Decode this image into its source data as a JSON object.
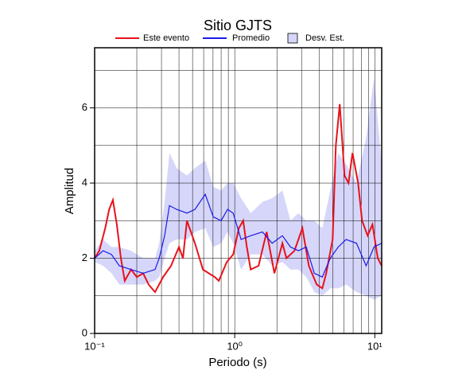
{
  "chart_data": {
    "type": "line",
    "title": "Sitio GJTS",
    "x_label": "Periodo (s)",
    "y_label": "Amplitud",
    "xscale": "log",
    "xlim": [
      0.1,
      11.2
    ],
    "ylim": [
      0,
      7.6
    ],
    "xticks": [
      {
        "value": 0.1,
        "label": "10⁻¹"
      },
      {
        "value": 1,
        "label": "10⁰"
      },
      {
        "value": 10,
        "label": "10¹"
      }
    ],
    "xminor": [
      0.2,
      0.3,
      0.4,
      0.5,
      0.6,
      0.7,
      0.8,
      0.9,
      2,
      3,
      4,
      5,
      6,
      7,
      8,
      9
    ],
    "yticks": [
      0,
      2,
      4,
      6
    ],
    "yminor": [
      1,
      3,
      5,
      7
    ],
    "grid": true,
    "legend": "top",
    "series": [
      {
        "name": "Este evento",
        "color": "#e8111a",
        "x": [
          0.1,
          0.108,
          0.119,
          0.127,
          0.135,
          0.144,
          0.154,
          0.164,
          0.182,
          0.2,
          0.222,
          0.243,
          0.27,
          0.308,
          0.351,
          0.4,
          0.427,
          0.456,
          0.52,
          0.593,
          0.721,
          0.77,
          0.877,
          0.975,
          1.07,
          1.15,
          1.22,
          1.3,
          1.48,
          1.69,
          1.92,
          2.19,
          2.34,
          2.67,
          3.04,
          3.38,
          3.85,
          4.22,
          4.5,
          5.0,
          5.27,
          5.62,
          6.08,
          6.49,
          6.93,
          7.6,
          8.11,
          8.89,
          9.62,
          10.5,
          11.2
        ],
        "values": [
          2.0,
          2.2,
          2.8,
          3.3,
          3.55,
          2.9,
          2.0,
          1.4,
          1.7,
          1.5,
          1.6,
          1.3,
          1.1,
          1.5,
          1.8,
          2.3,
          2.0,
          3.0,
          2.4,
          1.7,
          1.5,
          1.4,
          1.9,
          2.1,
          2.8,
          3.0,
          2.3,
          1.7,
          1.8,
          2.7,
          1.6,
          2.4,
          2.0,
          2.2,
          2.8,
          1.8,
          1.3,
          1.2,
          1.6,
          2.5,
          5.0,
          6.1,
          4.2,
          4.0,
          4.8,
          4.0,
          3.0,
          2.6,
          2.9,
          2.0,
          1.8
        ]
      },
      {
        "name": "Promedio",
        "color": "#1a1ae8",
        "x": [
          0.1,
          0.115,
          0.132,
          0.15,
          0.182,
          0.222,
          0.27,
          0.289,
          0.316,
          0.342,
          0.385,
          0.456,
          0.52,
          0.616,
          0.703,
          0.8,
          0.889,
          0.975,
          1.11,
          1.3,
          1.58,
          1.85,
          2.19,
          2.5,
          2.85,
          3.24,
          3.7,
          4.22,
          4.81,
          5.48,
          6.24,
          7.4,
          8.67,
          9.87,
          11.2
        ],
        "values": [
          2.0,
          2.2,
          2.1,
          1.8,
          1.7,
          1.6,
          1.7,
          2.0,
          2.6,
          3.4,
          3.3,
          3.2,
          3.3,
          3.7,
          3.1,
          3.0,
          3.3,
          3.2,
          2.5,
          2.6,
          2.7,
          2.4,
          2.6,
          2.3,
          2.2,
          2.3,
          1.6,
          1.5,
          2.0,
          2.3,
          2.5,
          2.4,
          1.8,
          2.3,
          2.4
        ]
      },
      {
        "name": "Desv. Est.",
        "color": "#d6d6fa",
        "band": true,
        "x": [
          0.1,
          0.115,
          0.132,
          0.15,
          0.182,
          0.222,
          0.27,
          0.289,
          0.316,
          0.342,
          0.385,
          0.456,
          0.52,
          0.616,
          0.703,
          0.8,
          0.889,
          0.975,
          1.11,
          1.3,
          1.58,
          1.85,
          2.19,
          2.5,
          2.85,
          3.24,
          3.7,
          4.22,
          4.81,
          5.48,
          6.24,
          7.4,
          8.67,
          9.87,
          11.2
        ],
        "lower": [
          1.9,
          1.8,
          1.6,
          1.3,
          1.3,
          1.3,
          1.4,
          1.5,
          2.0,
          2.4,
          2.5,
          2.5,
          2.7,
          2.8,
          2.3,
          2.4,
          2.7,
          2.4,
          1.7,
          2.1,
          2.1,
          1.8,
          1.9,
          1.7,
          1.7,
          1.5,
          1.1,
          1.0,
          1.2,
          1.2,
          1.3,
          1.1,
          1.0,
          0.9,
          1.0
        ],
        "upper": [
          2.2,
          2.5,
          2.3,
          2.3,
          2.2,
          2.0,
          2.0,
          2.4,
          3.5,
          4.8,
          4.4,
          4.2,
          4.4,
          4.6,
          3.9,
          3.8,
          4.0,
          4.0,
          3.6,
          3.2,
          3.5,
          3.6,
          3.8,
          3.0,
          3.2,
          3.0,
          3.0,
          2.8,
          3.8,
          4.8,
          4.5,
          4.0,
          5.2,
          6.8,
          4.5
        ]
      }
    ]
  }
}
